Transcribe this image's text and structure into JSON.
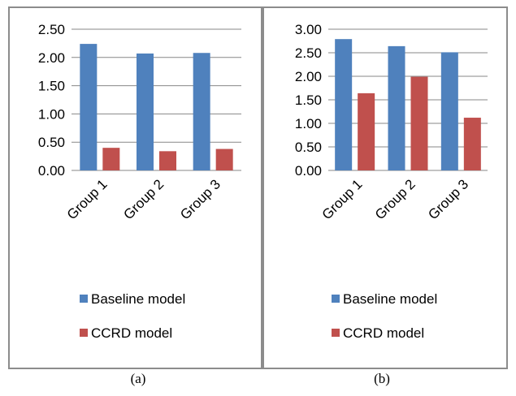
{
  "chart_data": [
    {
      "type": "bar",
      "caption": "(a)",
      "categories": [
        "Group 1",
        "Group 2",
        "Group 3"
      ],
      "series": [
        {
          "name": "Baseline model",
          "color": "#4F81BD",
          "values": [
            2.24,
            2.07,
            2.08
          ]
        },
        {
          "name": "CCRD model",
          "color": "#C0504D",
          "values": [
            0.4,
            0.34,
            0.38
          ]
        }
      ],
      "ylim": [
        0,
        2.5
      ],
      "yticks": [
        "0.00",
        "0.50",
        "1.00",
        "1.50",
        "2.00",
        "2.50"
      ],
      "grid": true,
      "legend_position": "bottom"
    },
    {
      "type": "bar",
      "caption": "(b)",
      "categories": [
        "Group 1",
        "Group 2",
        "Group 3"
      ],
      "series": [
        {
          "name": "Baseline model",
          "color": "#4F81BD",
          "values": [
            2.79,
            2.64,
            2.51
          ]
        },
        {
          "name": "CCRD model",
          "color": "#C0504D",
          "values": [
            1.64,
            1.99,
            1.12
          ]
        }
      ],
      "ylim": [
        0,
        3.0
      ],
      "yticks": [
        "0.00",
        "0.50",
        "1.00",
        "1.50",
        "2.00",
        "2.50",
        "3.00"
      ],
      "grid": true,
      "legend_position": "bottom"
    }
  ]
}
